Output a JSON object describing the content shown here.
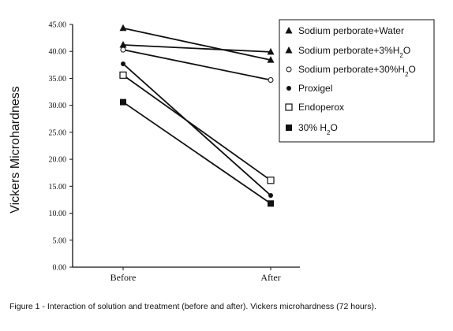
{
  "chart_data": {
    "type": "line",
    "title": "",
    "xlabel": "",
    "ylabel": "Vickers Microhardness",
    "categories": [
      "Before",
      "After"
    ],
    "ylim": [
      0,
      45
    ],
    "yticks": [
      "0.00",
      "5.00",
      "10.00",
      "15.00",
      "20.00",
      "25.00",
      "30.00",
      "35.00",
      "40.00",
      "45.00"
    ],
    "ytick_values": [
      0,
      5,
      10,
      15,
      20,
      25,
      30,
      35,
      40,
      45
    ],
    "grid": false,
    "legend_position": "top-right",
    "series": [
      {
        "name": "Sodium perborate+Water",
        "label": [
          "Sodium perborate+Water"
        ],
        "marker": "triangle",
        "values": [
          44.3,
          38.4
        ]
      },
      {
        "name": "Sodium perborate+3%H2O",
        "label": [
          "Sodium perborate+3%H",
          "2",
          "O"
        ],
        "marker": "triangle",
        "values": [
          41.2,
          39.9
        ]
      },
      {
        "name": "Sodium perborate+30%H2O",
        "label": [
          "Sodium perborate+30%H",
          "2",
          "O"
        ],
        "marker": "circle-open",
        "values": [
          40.3,
          34.7
        ]
      },
      {
        "name": "Proxigel",
        "label": [
          "Proxigel"
        ],
        "marker": "circle",
        "values": [
          37.7,
          13.3
        ]
      },
      {
        "name": "Endoperox",
        "label": [
          "Endoperox"
        ],
        "marker": "square-open",
        "values": [
          35.6,
          16.1
        ]
      },
      {
        "name": "30% H2O",
        "label": [
          "30% H",
          "2",
          "O"
        ],
        "marker": "square",
        "values": [
          30.6,
          11.8
        ]
      }
    ]
  },
  "caption": "Figure 1 - Interaction of solution and treatment (before and after). Vickers microhardness (72 hours)."
}
